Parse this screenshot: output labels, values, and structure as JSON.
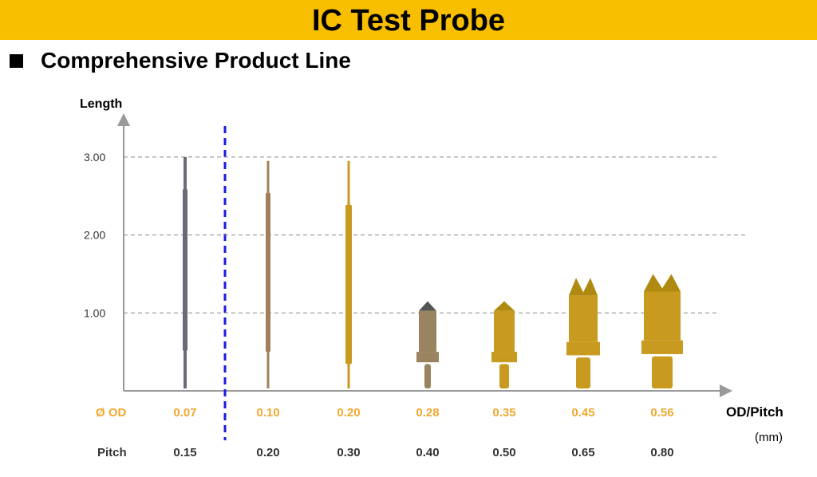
{
  "title": "IC Test Probe",
  "subtitle": "Comprehensive Product Line",
  "chart_data": {
    "type": "scatter",
    "ylabel": "Length",
    "xlabel": "OD/Pitch",
    "unit": "(mm)",
    "yticks": [
      "3.00",
      "2.00",
      "1.00"
    ],
    "yvalues": [
      3,
      2,
      1
    ],
    "row_od_label": "Ø OD",
    "row_pitch_label": "Pitch",
    "od": [
      "0.07",
      "0.10",
      "0.20",
      "0.28",
      "0.35",
      "0.45",
      "0.56"
    ],
    "pitch": [
      "0.15",
      "0.20",
      "0.30",
      "0.40",
      "0.50",
      "0.65",
      "0.80"
    ],
    "probe_length": [
      3.0,
      2.95,
      2.95,
      1.15,
      1.15,
      1.45,
      1.5
    ],
    "colors": {
      "od": "#f0a830",
      "probe_gray": "#6a6a78",
      "probe_bronze": "#a08058",
      "probe_gold": "#c89a20",
      "divider": "#1a1adf",
      "banner": "#f8bf00"
    }
  }
}
